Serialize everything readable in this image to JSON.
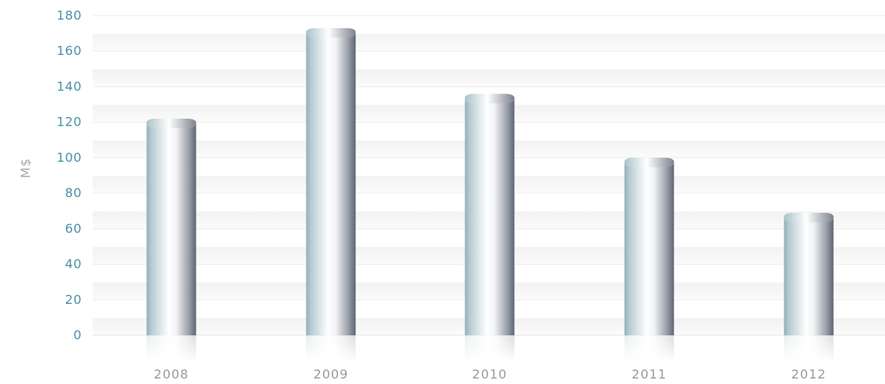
{
  "chart_data": {
    "type": "bar",
    "title": "",
    "xlabel": "",
    "ylabel": "M$",
    "categories": [
      "2008",
      "2009",
      "2010",
      "2011",
      "2012"
    ],
    "values": [
      122,
      173,
      136,
      100,
      69
    ],
    "ylim": [
      0,
      180
    ],
    "yticks": [
      "0",
      "20",
      "40",
      "60",
      "80",
      "100",
      "120",
      "140",
      "160",
      "180"
    ],
    "grid": true,
    "legend": "none"
  },
  "colors": {
    "tick_label": "#4d90a8",
    "category_label": "#9a9a9a",
    "axis_title": "#aaaaaa",
    "grid_band": "#f4f4f4",
    "bar_left": "#8fb1b9",
    "bar_mid": "#ffffff",
    "bar_right": "#5d6573"
  }
}
